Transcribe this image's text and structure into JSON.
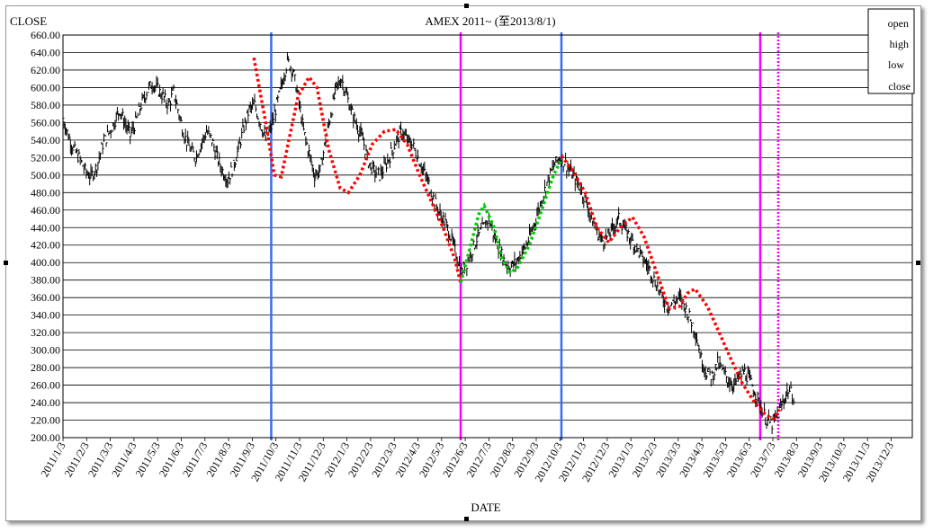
{
  "chart_data": {
    "type": "line",
    "title": "AMEX 2011~ (至2013/8/1)",
    "ylabel": "CLOSE",
    "xlabel": "DATE",
    "ylim": [
      200,
      660
    ],
    "y_ticks": [
      "660.00",
      "640.00",
      "620.00",
      "600.00",
      "580.00",
      "560.00",
      "540.00",
      "520.00",
      "500.00",
      "480.00",
      "460.00",
      "440.00",
      "420.00",
      "400.00",
      "380.00",
      "360.00",
      "340.00",
      "320.00",
      "300.00",
      "280.00",
      "260.00",
      "240.00",
      "220.00",
      "200.00"
    ],
    "x_ticks": [
      "2011/1/3",
      "2011/2/3",
      "2011/3/3",
      "2011/4/3",
      "2011/5/3",
      "2011/6/3",
      "2011/7/3",
      "2011/8/3",
      "2011/9/3",
      "2011/10/3",
      "2011/11/3",
      "2011/12/3",
      "2012/1/3",
      "2012/2/3",
      "2012/3/3",
      "2012/4/3",
      "2012/5/3",
      "2012/6/3",
      "2012/7/3",
      "2012/8/3",
      "2012/9/3",
      "2012/10/3",
      "2012/11/3",
      "2012/12/3",
      "2013/1/3",
      "2013/2/3",
      "2013/3/3",
      "2013/4/3",
      "2013/5/3",
      "2013/6/3",
      "2013/7/3",
      "2013/8/3",
      "2013/9/3",
      "2013/10/3",
      "2013/11/3",
      "2013/12/3"
    ],
    "legend": {
      "placement": "top-right",
      "entries": [
        "open",
        "high",
        "low",
        "close"
      ]
    },
    "grid": "horizontal",
    "series": [
      {
        "name": "close",
        "color": "#000000",
        "points": [
          [
            "2011/1/3",
            565
          ],
          [
            "2011/1/10",
            545
          ],
          [
            "2011/1/17",
            530
          ],
          [
            "2011/1/24",
            520
          ],
          [
            "2011/2/1",
            505
          ],
          [
            "2011/2/8",
            498
          ],
          [
            "2011/2/15",
            510
          ],
          [
            "2011/2/22",
            535
          ],
          [
            "2011/3/1",
            548
          ],
          [
            "2011/3/8",
            560
          ],
          [
            "2011/3/15",
            575
          ],
          [
            "2011/3/22",
            560
          ],
          [
            "2011/3/29",
            545
          ],
          [
            "2011/4/5",
            560
          ],
          [
            "2011/4/12",
            580
          ],
          [
            "2011/4/19",
            595
          ],
          [
            "2011/4/26",
            605
          ],
          [
            "2011/5/3",
            598
          ],
          [
            "2011/5/10",
            590
          ],
          [
            "2011/5/17",
            580
          ],
          [
            "2011/5/24",
            595
          ],
          [
            "2011/5/31",
            570
          ],
          [
            "2011/6/7",
            545
          ],
          [
            "2011/6/14",
            530
          ],
          [
            "2011/6/21",
            520
          ],
          [
            "2011/6/28",
            535
          ],
          [
            "2011/7/5",
            550
          ],
          [
            "2011/7/12",
            540
          ],
          [
            "2011/7/19",
            520
          ],
          [
            "2011/7/26",
            505
          ],
          [
            "2011/8/2",
            495
          ],
          [
            "2011/8/9",
            510
          ],
          [
            "2011/8/16",
            530
          ],
          [
            "2011/8/23",
            555
          ],
          [
            "2011/8/30",
            575
          ],
          [
            "2011/9/6",
            580
          ],
          [
            "2011/9/13",
            560
          ],
          [
            "2011/9/20",
            540
          ],
          [
            "2011/9/27",
            555
          ],
          [
            "2011/10/4",
            580
          ],
          [
            "2011/10/11",
            605
          ],
          [
            "2011/10/18",
            630
          ],
          [
            "2011/10/25",
            620
          ],
          [
            "2011/11/1",
            590
          ],
          [
            "2011/11/8",
            550
          ],
          [
            "2011/11/15",
            525
          ],
          [
            "2011/11/22",
            500
          ],
          [
            "2011/11/29",
            505
          ],
          [
            "2011/12/6",
            540
          ],
          [
            "2011/12/13",
            570
          ],
          [
            "2011/12/20",
            600
          ],
          [
            "2011/12/27",
            610
          ],
          [
            "2012/1/3",
            590
          ],
          [
            "2012/1/10",
            570
          ],
          [
            "2012/1/17",
            555
          ],
          [
            "2012/1/24",
            540
          ],
          [
            "2012/1/31",
            515
          ],
          [
            "2012/2/7",
            505
          ],
          [
            "2012/2/14",
            500
          ],
          [
            "2012/2/21",
            510
          ],
          [
            "2012/2/28",
            525
          ],
          [
            "2012/3/6",
            540
          ],
          [
            "2012/3/13",
            550
          ],
          [
            "2012/3/20",
            540
          ],
          [
            "2012/3/27",
            535
          ],
          [
            "2012/4/3",
            520
          ],
          [
            "2012/4/10",
            505
          ],
          [
            "2012/4/17",
            490
          ],
          [
            "2012/4/24",
            470
          ],
          [
            "2012/5/1",
            455
          ],
          [
            "2012/5/8",
            445
          ],
          [
            "2012/5/15",
            430
          ],
          [
            "2012/5/22",
            410
          ],
          [
            "2012/5/29",
            390
          ],
          [
            "2012/6/5",
            400
          ],
          [
            "2012/6/12",
            415
          ],
          [
            "2012/6/19",
            430
          ],
          [
            "2012/6/26",
            440
          ],
          [
            "2012/7/3",
            450
          ],
          [
            "2012/7/10",
            430
          ],
          [
            "2012/7/17",
            415
          ],
          [
            "2012/7/24",
            400
          ],
          [
            "2012/7/31",
            395
          ],
          [
            "2012/8/7",
            400
          ],
          [
            "2012/8/14",
            410
          ],
          [
            "2012/8/21",
            420
          ],
          [
            "2012/8/28",
            435
          ],
          [
            "2012/9/4",
            455
          ],
          [
            "2012/9/11",
            475
          ],
          [
            "2012/9/18",
            495
          ],
          [
            "2012/9/25",
            510
          ],
          [
            "2012/10/2",
            520
          ],
          [
            "2012/10/9",
            515
          ],
          [
            "2012/10/16",
            505
          ],
          [
            "2012/10/23",
            495
          ],
          [
            "2012/10/30",
            485
          ],
          [
            "2012/11/6",
            470
          ],
          [
            "2012/11/13",
            450
          ],
          [
            "2012/11/20",
            435
          ],
          [
            "2012/11/27",
            425
          ],
          [
            "2012/12/4",
            430
          ],
          [
            "2012/12/11",
            440
          ],
          [
            "2012/12/18",
            450
          ],
          [
            "2012/12/25",
            440
          ],
          [
            "2013/1/1",
            430
          ],
          [
            "2013/1/8",
            420
          ],
          [
            "2013/1/15",
            410
          ],
          [
            "2013/1/22",
            400
          ],
          [
            "2013/1/29",
            390
          ],
          [
            "2013/2/5",
            375
          ],
          [
            "2013/2/12",
            360
          ],
          [
            "2013/2/19",
            350
          ],
          [
            "2013/2/26",
            355
          ],
          [
            "2013/3/5",
            360
          ],
          [
            "2013/3/12",
            350
          ],
          [
            "2013/3/19",
            335
          ],
          [
            "2013/3/26",
            320
          ],
          [
            "2013/4/2",
            290
          ],
          [
            "2013/4/9",
            275
          ],
          [
            "2013/4/16",
            270
          ],
          [
            "2013/4/23",
            285
          ],
          [
            "2013/4/30",
            275
          ],
          [
            "2013/5/7",
            265
          ],
          [
            "2013/5/14",
            260
          ],
          [
            "2013/5/21",
            270
          ],
          [
            "2013/5/28",
            275
          ],
          [
            "2013/6/4",
            265
          ],
          [
            "2013/6/11",
            250
          ],
          [
            "2013/6/18",
            235
          ],
          [
            "2013/6/25",
            220
          ],
          [
            "2013/7/2",
            215
          ],
          [
            "2013/7/9",
            225
          ],
          [
            "2013/7/16",
            240
          ],
          [
            "2013/7/23",
            255
          ],
          [
            "2013/8/1",
            245
          ]
        ]
      }
    ],
    "cycle_lines": [
      {
        "color": "#ff0000",
        "style": "dotted",
        "points": [
          [
            "2011/9/5",
            634
          ],
          [
            "2011/9/20",
            560
          ],
          [
            "2011/10/1",
            500
          ],
          [
            "2011/10/10",
            498
          ],
          [
            "2011/10/20",
            540
          ],
          [
            "2011/11/1",
            590
          ],
          [
            "2011/11/15",
            612
          ],
          [
            "2011/11/25",
            600
          ],
          [
            "2011/12/10",
            530
          ],
          [
            "2011/12/25",
            485
          ],
          [
            "2012/1/5",
            480
          ],
          [
            "2012/1/20",
            500
          ],
          [
            "2012/2/5",
            535
          ],
          [
            "2012/2/20",
            550
          ],
          [
            "2012/3/5",
            552
          ],
          [
            "2012/3/20",
            535
          ],
          [
            "2012/4/5",
            500
          ],
          [
            "2012/4/20",
            470
          ],
          [
            "2012/5/5",
            440
          ],
          [
            "2012/5/20",
            405
          ],
          [
            "2012/5/28",
            377
          ]
        ]
      },
      {
        "color": "#00cc00",
        "style": "dotted",
        "points": [
          [
            "2012/5/28",
            377
          ],
          [
            "2012/6/10",
            420
          ],
          [
            "2012/6/20",
            455
          ],
          [
            "2012/6/27",
            465
          ],
          [
            "2012/7/10",
            440
          ],
          [
            "2012/7/20",
            405
          ],
          [
            "2012/7/31",
            388
          ],
          [
            "2012/8/10",
            395
          ],
          [
            "2012/8/25",
            420
          ],
          [
            "2012/9/10",
            460
          ],
          [
            "2012/9/25",
            500
          ],
          [
            "2012/10/5",
            518
          ]
        ]
      },
      {
        "color": "#ff0000",
        "style": "dotted",
        "points": [
          [
            "2012/10/5",
            522
          ],
          [
            "2012/10/20",
            505
          ],
          [
            "2012/11/5",
            480
          ],
          [
            "2012/11/20",
            440
          ],
          [
            "2012/12/5",
            423
          ],
          [
            "2012/12/20",
            440
          ],
          [
            "2013/1/5",
            452
          ],
          [
            "2013/1/20",
            430
          ],
          [
            "2013/2/5",
            390
          ],
          [
            "2013/2/20",
            348
          ],
          [
            "2013/3/5",
            350
          ],
          [
            "2013/3/15",
            365
          ],
          [
            "2013/3/25",
            370
          ],
          [
            "2013/4/10",
            350
          ],
          [
            "2013/4/25",
            320
          ],
          [
            "2013/5/10",
            290
          ],
          [
            "2013/5/25",
            262
          ],
          [
            "2013/6/10",
            240
          ],
          [
            "2013/6/25",
            225
          ],
          [
            "2013/7/5",
            222
          ],
          [
            "2013/7/12",
            232
          ]
        ]
      }
    ],
    "marker_lines": [
      {
        "date": "2011/9/27",
        "color": "#3b6cf0",
        "style": "solid"
      },
      {
        "date": "2012/5/28",
        "color": "#ff00ff",
        "style": "solid"
      },
      {
        "date": "2012/10/5",
        "color": "#3b6cf0",
        "style": "solid"
      },
      {
        "date": "2013/6/17",
        "color": "#ff00ff",
        "style": "solid"
      },
      {
        "date": "2013/7/10",
        "color": "#ff00ff",
        "style": "dotted"
      }
    ]
  }
}
